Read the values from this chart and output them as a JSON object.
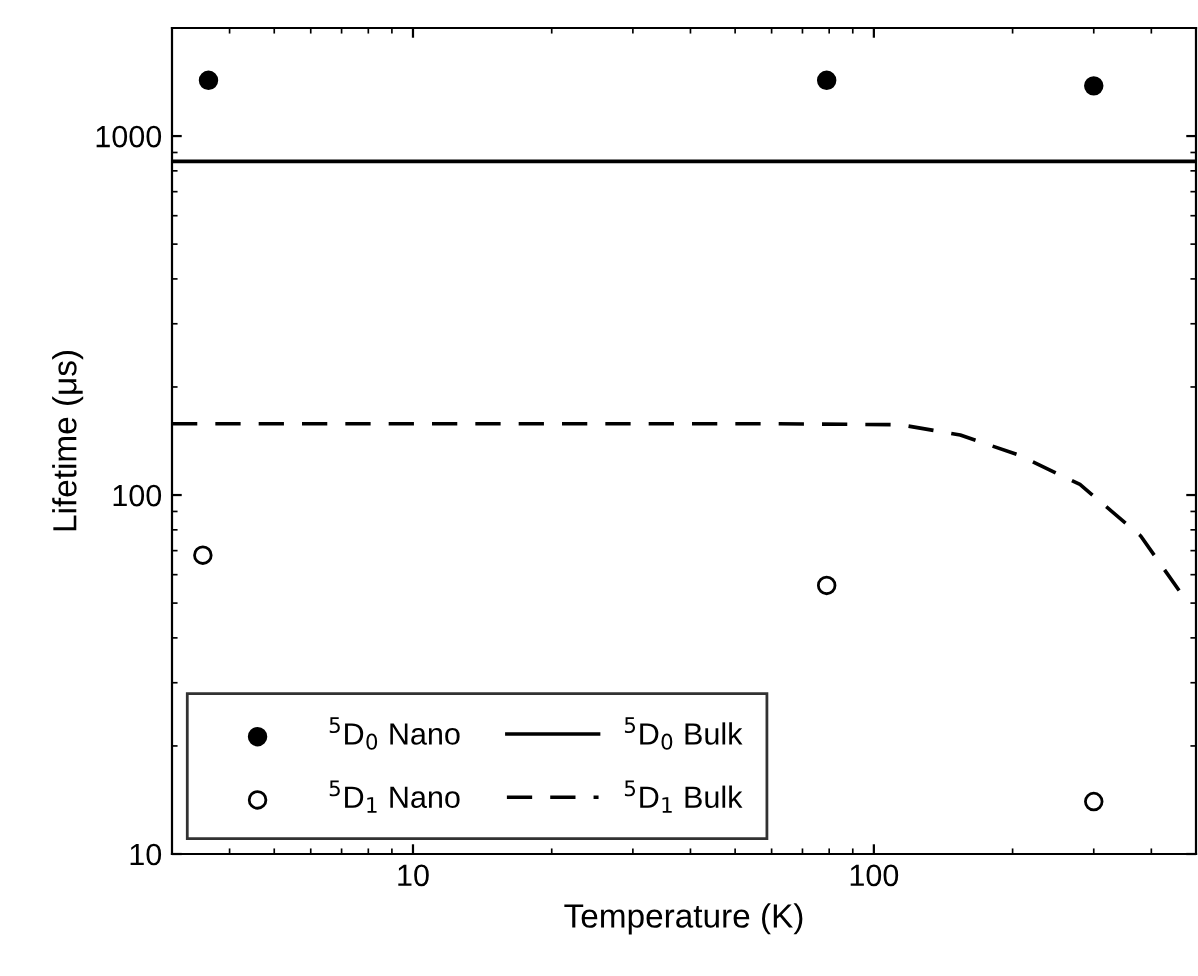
{
  "chart_data": {
    "type": "scatter",
    "xlabel": "Temperature (K)",
    "ylabel": "Lifetime (μs)",
    "log": "xy",
    "xlim": [
      3,
      500
    ],
    "ylim": [
      10,
      2000
    ],
    "xticks": [
      10,
      100
    ],
    "yticks": [
      10,
      100,
      1000
    ],
    "legend": "bottom left",
    "grid": false,
    "series": [
      {
        "name": "$^{5}$D$_{0}$ Nano",
        "marker": "circle",
        "color": "#000000",
        "x": [
          3.6,
          79,
          300
        ],
        "values": [
          1430,
          1430,
          1380
        ]
      },
      {
        "name": "$^{5}$D$_{1}$ Nano",
        "marker": "circle",
        "color": "#ffffff",
        "x": [
          3.5,
          79,
          300
        ],
        "values": [
          68,
          56,
          14
        ]
      },
      {
        "name": "$^{5}$D$_{0}$ Bulk",
        "type": "line",
        "marker": "none",
        "line_style": "solid",
        "color": "#000000",
        "x": [
          3,
          500
        ],
        "values": [
          850,
          850
        ]
      },
      {
        "name": "$^{5}$D$_{1}$ Bulk",
        "type": "line",
        "marker": "none",
        "line_style": "dashed",
        "color": "#000000",
        "x": [
          3,
          60,
          114,
          154,
          207,
          280,
          379,
          470
        ],
        "values": [
          158,
          158,
          157,
          147,
          129,
          107,
          77,
          52
        ]
      }
    ]
  }
}
